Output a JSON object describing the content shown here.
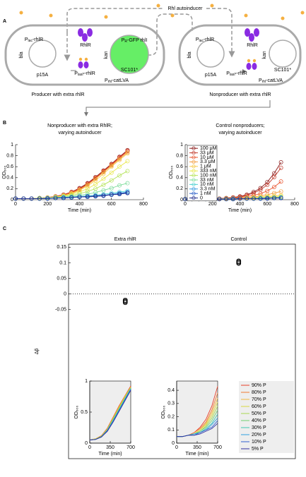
{
  "panel_labels": [
    "A",
    "B",
    "C"
  ],
  "diagram": {
    "signal": "Rhl autoinducer",
    "cells": [
      {
        "caption": "Producer with extra rhlR",
        "protein": "RhlR",
        "plasmids": [
          {
            "name": "p15A",
            "marker": "bla"
          },
          {
            "name": "SC101*",
            "marker": "kan"
          }
        ],
        "genes": [
          {
            "p": "P",
            "sub": "lac",
            "tail": "-rhlR"
          },
          {
            "p": "P",
            "sub": "lasI*",
            "tail": "-rhlR"
          },
          {
            "p": "P",
            "sub": "rhl",
            "tail": "-catLVA"
          },
          {
            "p": "P",
            "sub": "R",
            "tail": "-GFP rhlI"
          }
        ]
      },
      {
        "caption": "Nonproducer with extra rhlR",
        "protein": "RhlR",
        "plasmids": [
          {
            "name": "p15A",
            "marker": "bla"
          },
          {
            "name": "SC101*",
            "marker": "kan"
          }
        ],
        "genes": [
          {
            "p": "P",
            "sub": "lac",
            "tail": "-rhlR"
          },
          {
            "p": "P",
            "sub": "lasI*",
            "tail": "-rhlR"
          },
          {
            "p": "P",
            "sub": "rhl",
            "tail": "-catLVA"
          }
        ]
      }
    ]
  },
  "chart_data": [
    {
      "type": "line",
      "title": [
        "Nonproducer with extra RhlR;",
        "varying autoinducer"
      ],
      "xlabel": "Time (min)",
      "ylabel": "OD₆₀₀",
      "x": [
        0,
        50,
        100,
        150,
        200,
        250,
        300,
        350,
        400,
        450,
        500,
        550,
        600,
        650,
        700
      ],
      "xlim": [
        0,
        800
      ],
      "xticks": [
        0,
        200,
        400,
        600,
        800
      ],
      "ylim": [
        0,
        1
      ],
      "yticks": [
        0,
        0.2,
        0.4,
        0.6,
        0.8,
        1
      ],
      "markers": true,
      "series": [
        {
          "color": "#8b1a1a",
          "values": [
            0.02,
            0.02,
            0.02,
            0.03,
            0.04,
            0.06,
            0.09,
            0.14,
            0.21,
            0.3,
            0.41,
            0.53,
            0.65,
            0.78,
            0.9
          ]
        },
        {
          "color": "#c0392b",
          "values": [
            0.02,
            0.02,
            0.02,
            0.03,
            0.04,
            0.06,
            0.09,
            0.14,
            0.2,
            0.29,
            0.4,
            0.52,
            0.64,
            0.77,
            0.89
          ]
        },
        {
          "color": "#e8502a",
          "values": [
            0.02,
            0.02,
            0.02,
            0.03,
            0.04,
            0.05,
            0.08,
            0.13,
            0.19,
            0.28,
            0.39,
            0.51,
            0.63,
            0.76,
            0.88
          ]
        },
        {
          "color": "#f39c3c",
          "values": [
            0.02,
            0.02,
            0.02,
            0.03,
            0.04,
            0.05,
            0.08,
            0.12,
            0.18,
            0.27,
            0.38,
            0.5,
            0.62,
            0.74,
            0.86
          ]
        },
        {
          "color": "#f7c948",
          "values": [
            0.02,
            0.02,
            0.02,
            0.03,
            0.04,
            0.05,
            0.07,
            0.11,
            0.17,
            0.25,
            0.35,
            0.47,
            0.6,
            0.72,
            0.84
          ]
        },
        {
          "color": "#e8e84a",
          "values": [
            0.02,
            0.02,
            0.02,
            0.03,
            0.03,
            0.05,
            0.07,
            0.1,
            0.14,
            0.2,
            0.28,
            0.38,
            0.49,
            0.6,
            0.7
          ]
        },
        {
          "color": "#b5e35a",
          "values": [
            0.02,
            0.02,
            0.02,
            0.03,
            0.03,
            0.04,
            0.06,
            0.08,
            0.11,
            0.15,
            0.2,
            0.27,
            0.35,
            0.44,
            0.52
          ]
        },
        {
          "color": "#7ddc9a",
          "values": [
            0.02,
            0.02,
            0.02,
            0.02,
            0.03,
            0.04,
            0.05,
            0.06,
            0.08,
            0.1,
            0.13,
            0.17,
            0.21,
            0.26,
            0.3
          ]
        },
        {
          "color": "#4fd2d2",
          "values": [
            0.02,
            0.02,
            0.02,
            0.02,
            0.03,
            0.03,
            0.04,
            0.05,
            0.06,
            0.07,
            0.08,
            0.1,
            0.12,
            0.14,
            0.16
          ]
        },
        {
          "color": "#3c9ee0",
          "values": [
            0.02,
            0.02,
            0.02,
            0.02,
            0.03,
            0.03,
            0.04,
            0.04,
            0.05,
            0.06,
            0.07,
            0.08,
            0.1,
            0.12,
            0.14
          ]
        },
        {
          "color": "#2b5fc7",
          "values": [
            0.02,
            0.02,
            0.02,
            0.02,
            0.02,
            0.03,
            0.03,
            0.04,
            0.05,
            0.06,
            0.07,
            0.08,
            0.09,
            0.11,
            0.13
          ]
        },
        {
          "color": "#1f2a8a",
          "values": [
            0.02,
            0.02,
            0.02,
            0.02,
            0.02,
            0.03,
            0.03,
            0.04,
            0.05,
            0.05,
            0.06,
            0.07,
            0.09,
            0.1,
            0.12
          ]
        }
      ]
    },
    {
      "type": "line",
      "title": [
        "Control nonproducers;",
        "varying autoinducer"
      ],
      "xlabel": "Time (min)",
      "ylabel": "OD₆₀₀",
      "x": [
        0,
        50,
        100,
        150,
        200,
        250,
        300,
        350,
        400,
        450,
        500,
        550,
        600,
        650,
        700
      ],
      "xlim": [
        0,
        800
      ],
      "xticks": [
        0,
        200,
        400,
        600,
        800
      ],
      "ylim": [
        0,
        1
      ],
      "yticks": [
        0,
        0.2,
        0.4,
        0.6,
        0.8,
        1
      ],
      "markers": true,
      "legend": "upper left",
      "series": [
        {
          "name": "100 μM",
          "color": "#8b1a1a",
          "values": [
            0.01,
            0.01,
            0.01,
            0.01,
            0.02,
            0.02,
            0.03,
            0.04,
            0.06,
            0.09,
            0.14,
            0.21,
            0.32,
            0.48,
            0.68
          ]
        },
        {
          "name": "33 μM",
          "color": "#c0392b",
          "values": [
            0.01,
            0.01,
            0.01,
            0.01,
            0.02,
            0.02,
            0.03,
            0.04,
            0.05,
            0.08,
            0.12,
            0.18,
            0.27,
            0.41,
            0.58
          ]
        },
        {
          "name": "10 μM",
          "color": "#e8502a",
          "values": [
            0.01,
            0.01,
            0.01,
            0.01,
            0.01,
            0.02,
            0.02,
            0.03,
            0.04,
            0.06,
            0.08,
            0.11,
            0.16,
            0.23,
            0.33
          ]
        },
        {
          "name": "3.3 μM",
          "color": "#f39c3c",
          "values": [
            0.01,
            0.01,
            0.01,
            0.01,
            0.01,
            0.02,
            0.02,
            0.02,
            0.03,
            0.04,
            0.05,
            0.07,
            0.09,
            0.12,
            0.15
          ]
        },
        {
          "name": "1 μM",
          "color": "#f7c948",
          "values": [
            0.01,
            0.01,
            0.01,
            0.01,
            0.01,
            0.01,
            0.02,
            0.02,
            0.02,
            0.03,
            0.04,
            0.05,
            0.06,
            0.07,
            0.08
          ]
        },
        {
          "name": "333 nM",
          "color": "#e8e84a",
          "values": [
            0.01,
            0.01,
            0.01,
            0.01,
            0.01,
            0.01,
            0.02,
            0.02,
            0.02,
            0.03,
            0.03,
            0.04,
            0.05,
            0.05,
            0.06
          ]
        },
        {
          "name": "100 nM",
          "color": "#b5e35a",
          "values": [
            0.01,
            0.01,
            0.01,
            0.01,
            0.01,
            0.01,
            0.01,
            0.02,
            0.02,
            0.02,
            0.03,
            0.03,
            0.04,
            0.04,
            0.05
          ]
        },
        {
          "name": "33 nM",
          "color": "#7ddc9a",
          "values": [
            0.01,
            0.01,
            0.01,
            0.01,
            0.01,
            0.01,
            0.01,
            0.02,
            0.02,
            0.02,
            0.02,
            0.03,
            0.03,
            0.04,
            0.04
          ]
        },
        {
          "name": "10 nM",
          "color": "#4fd2d2",
          "values": [
            0.01,
            0.01,
            0.01,
            0.01,
            0.01,
            0.01,
            0.01,
            0.02,
            0.02,
            0.02,
            0.02,
            0.03,
            0.03,
            0.03,
            0.04
          ]
        },
        {
          "name": "3.3 nM",
          "color": "#3c9ee0",
          "values": [
            0.01,
            0.01,
            0.01,
            0.01,
            0.01,
            0.01,
            0.01,
            0.01,
            0.02,
            0.02,
            0.02,
            0.02,
            0.03,
            0.03,
            0.04
          ]
        },
        {
          "name": "1 nM",
          "color": "#2b5fc7",
          "values": [
            0.01,
            0.01,
            0.01,
            0.01,
            0.01,
            0.01,
            0.01,
            0.01,
            0.02,
            0.02,
            0.02,
            0.02,
            0.03,
            0.03,
            0.03
          ]
        },
        {
          "name": "0",
          "color": "#1f2a8a",
          "values": [
            0.01,
            0.01,
            0.01,
            0.01,
            0.01,
            0.01,
            0.01,
            0.01,
            0.02,
            0.02,
            0.02,
            0.02,
            0.02,
            0.03,
            0.03
          ]
        }
      ]
    },
    {
      "type": "scatter",
      "categories": [
        "Extra rhlR",
        "Control"
      ],
      "ylabel": "Δp̃",
      "ylim": [
        -0.53,
        0.16
      ],
      "yticks": [
        -0.05,
        0,
        0.05,
        0.1,
        0.15
      ],
      "reference_line": 0,
      "color": "#000000",
      "values": [
        [
          -0.02,
          -0.022,
          -0.024,
          -0.026,
          -0.028
        ],
        [
          0.098,
          0.1,
          0.102,
          0.104,
          0.106
        ]
      ]
    },
    {
      "type": "line",
      "xlabel": "Time (min)",
      "ylabel": "OD₆₀₀",
      "x": [
        0,
        100,
        200,
        300,
        400,
        500,
        600,
        700
      ],
      "xlim": [
        0,
        700
      ],
      "xticks": [
        0,
        350,
        700
      ],
      "ylim": [
        0,
        1
      ],
      "yticks": [
        0,
        0.5,
        1
      ],
      "background": "#eeeeee",
      "series": [
        {
          "color": "#e8402a",
          "values": [
            0.05,
            0.07,
            0.12,
            0.24,
            0.42,
            0.6,
            0.76,
            0.92
          ]
        },
        {
          "color": "#f07a30",
          "values": [
            0.05,
            0.07,
            0.12,
            0.23,
            0.41,
            0.59,
            0.75,
            0.91
          ]
        },
        {
          "color": "#f0b840",
          "values": [
            0.05,
            0.07,
            0.11,
            0.23,
            0.4,
            0.58,
            0.75,
            0.9
          ]
        },
        {
          "color": "#d8d840",
          "values": [
            0.05,
            0.07,
            0.11,
            0.22,
            0.4,
            0.57,
            0.74,
            0.9
          ]
        },
        {
          "color": "#a8d850",
          "values": [
            0.05,
            0.06,
            0.11,
            0.22,
            0.39,
            0.56,
            0.73,
            0.89
          ]
        },
        {
          "color": "#70d070",
          "values": [
            0.05,
            0.06,
            0.11,
            0.21,
            0.38,
            0.55,
            0.72,
            0.88
          ]
        },
        {
          "color": "#40c8b0",
          "values": [
            0.05,
            0.06,
            0.1,
            0.21,
            0.37,
            0.54,
            0.71,
            0.88
          ]
        },
        {
          "color": "#30a0e0",
          "values": [
            0.05,
            0.06,
            0.1,
            0.2,
            0.36,
            0.53,
            0.7,
            0.87
          ]
        },
        {
          "color": "#3060d0",
          "values": [
            0.05,
            0.06,
            0.1,
            0.2,
            0.35,
            0.52,
            0.69,
            0.86
          ]
        },
        {
          "color": "#3030a0",
          "values": [
            0.05,
            0.06,
            0.1,
            0.19,
            0.34,
            0.51,
            0.68,
            0.85
          ]
        }
      ]
    },
    {
      "type": "line",
      "xlabel": "Time (min)",
      "ylabel": "OD₆₀₀",
      "x": [
        0,
        100,
        200,
        300,
        400,
        500,
        600,
        700
      ],
      "xlim": [
        0,
        700
      ],
      "xticks": [
        0,
        350,
        700
      ],
      "ylim": [
        0,
        0.47
      ],
      "yticks": [
        0,
        0.1,
        0.2,
        0.3,
        0.4
      ],
      "background": "#eeeeee",
      "legend": "outside right",
      "series": [
        {
          "name": "90% P",
          "color": "#e8402a",
          "values": [
            0.05,
            0.05,
            0.06,
            0.08,
            0.12,
            0.18,
            0.28,
            0.43
          ]
        },
        {
          "name": "80% P",
          "color": "#f07a30",
          "values": [
            0.05,
            0.05,
            0.06,
            0.08,
            0.11,
            0.16,
            0.25,
            0.38
          ]
        },
        {
          "name": "70% P",
          "color": "#f0b840",
          "values": [
            0.05,
            0.05,
            0.06,
            0.07,
            0.1,
            0.15,
            0.23,
            0.34
          ]
        },
        {
          "name": "60% P",
          "color": "#d8d840",
          "values": [
            0.05,
            0.05,
            0.06,
            0.07,
            0.1,
            0.14,
            0.21,
            0.31
          ]
        },
        {
          "name": "50% P",
          "color": "#a8d850",
          "values": [
            0.05,
            0.05,
            0.06,
            0.07,
            0.09,
            0.13,
            0.19,
            0.28
          ]
        },
        {
          "name": "40% P",
          "color": "#70d070",
          "values": [
            0.05,
            0.05,
            0.06,
            0.07,
            0.09,
            0.12,
            0.17,
            0.25
          ]
        },
        {
          "name": "30% P",
          "color": "#40c8b0",
          "values": [
            0.05,
            0.05,
            0.06,
            0.07,
            0.08,
            0.11,
            0.15,
            0.22
          ]
        },
        {
          "name": "20% P",
          "color": "#30a0e0",
          "values": [
            0.05,
            0.05,
            0.06,
            0.07,
            0.08,
            0.1,
            0.14,
            0.19
          ]
        },
        {
          "name": "10% P",
          "color": "#3060d0",
          "values": [
            0.05,
            0.05,
            0.06,
            0.06,
            0.08,
            0.1,
            0.12,
            0.17
          ]
        },
        {
          "name": "5% P",
          "color": "#3030a0",
          "values": [
            0.05,
            0.05,
            0.06,
            0.06,
            0.07,
            0.09,
            0.11,
            0.15
          ]
        }
      ]
    }
  ]
}
